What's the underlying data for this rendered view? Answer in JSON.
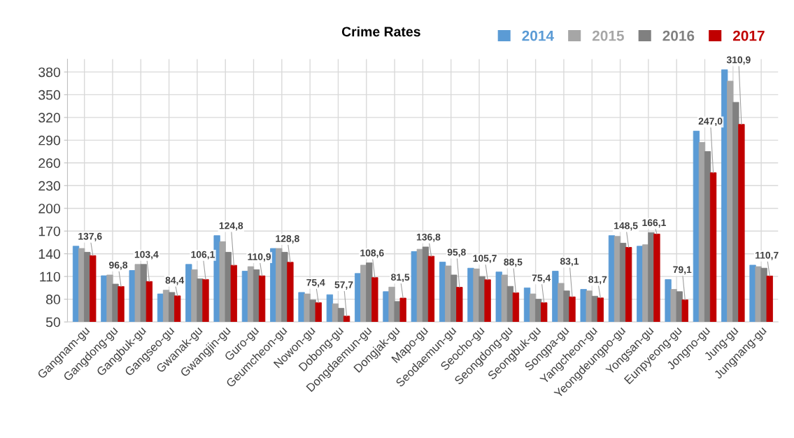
{
  "chart_data": {
    "type": "bar",
    "title": "Crime Rates",
    "categories": [
      "Gangnam-gu",
      "Gangdong-gu",
      "Gangbuk-gu",
      "Gangseo-gu",
      "Gwanak-gu",
      "Gwangjin-gu",
      "Guro-gu",
      "Geumcheon-gu",
      "Nowon-gu",
      "Dobong-gu",
      "Dongdaemun-gu",
      "Dongjak-gu",
      "Mapo-gu",
      "Seodaemun-gu",
      "Seocho-gu",
      "Seongdong-gu",
      "Seongbuk-gu",
      "Songpa-gu",
      "Yangcheon-gu",
      "Yeongdeungpo-gu",
      "Yongsan-gu",
      "Eunpyeong-gu",
      "Jongno-gu",
      "Jung-gu",
      "Jungnang-gu"
    ],
    "series": [
      {
        "name": "2014",
        "color": "#5b9bd5",
        "values": [
          150,
          111,
          118,
          87,
          126,
          164,
          117,
          147,
          89,
          86,
          114,
          90,
          143,
          129,
          121,
          116,
          95,
          117,
          93,
          164,
          150,
          106,
          302,
          383,
          125
        ]
      },
      {
        "name": "2015",
        "color": "#a6a6a6",
        "values": [
          147,
          112,
          126,
          92,
          119,
          156,
          123,
          147,
          87,
          74,
          125,
          96,
          146,
          124,
          120,
          112,
          87,
          101,
          91,
          163,
          152,
          93,
          287,
          368,
          123
        ]
      },
      {
        "name": "2016",
        "color": "#808080",
        "values": [
          142,
          100,
          126,
          89,
          107,
          142,
          119,
          142,
          79,
          68,
          128,
          77,
          149,
          112,
          110,
          97,
          80,
          91,
          84,
          154,
          168,
          90,
          275,
          340,
          121
        ]
      },
      {
        "name": "2017",
        "color": "#c00000",
        "values": [
          137.6,
          96.8,
          103.4,
          84.4,
          106.1,
          124.8,
          110.9,
          128.8,
          75.4,
          57.7,
          108.6,
          81.5,
          136.8,
          95.8,
          105.7,
          88.5,
          75.4,
          83.1,
          81.7,
          148.5,
          166.1,
          79.1,
          247.0,
          310.9,
          110.7
        ],
        "value_labels": [
          "137,6",
          "96,8",
          "103,4",
          "84,4",
          "106,1",
          "124,8",
          "110,9",
          "128,8",
          "75,4",
          "57,7",
          "108,6",
          "81,5",
          "136,8",
          "95,8",
          "105,7",
          "88,5",
          "75,4",
          "83,1",
          "81,7",
          "148,5",
          "166,1",
          "79,1",
          "247,0",
          "310,9",
          "110,7"
        ]
      }
    ],
    "ylim": [
      50,
      397
    ],
    "yticks": [
      50,
      80,
      110,
      140,
      170,
      200,
      230,
      260,
      290,
      320,
      350,
      380
    ],
    "grid": true,
    "legend": "top right"
  }
}
